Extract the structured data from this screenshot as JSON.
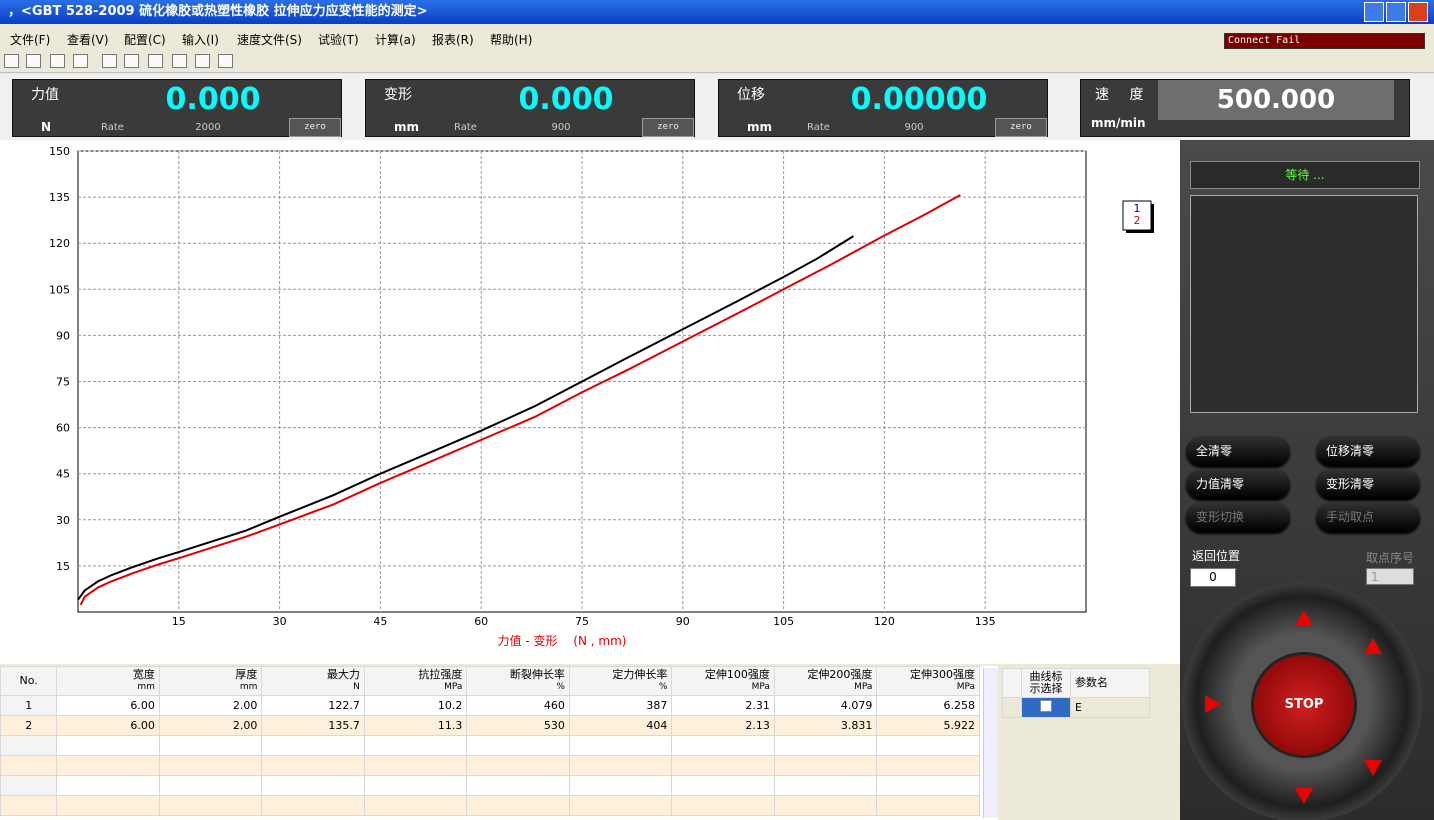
{
  "window": {
    "title": "，<GBT 528-2009 硫化橡胶或热塑性橡胶 拉伸应力应变性能的测定>"
  },
  "menu": [
    "文件(F)",
    "查看(V)",
    "配置(C)",
    "输入(I)",
    "速度文件(S)",
    "试验(T)",
    "计算(a)",
    "报表(R)",
    "帮助(H)"
  ],
  "status": "Connect Fail",
  "gauges": [
    {
      "label": "力值",
      "value": "0.000",
      "unit": "N",
      "rate_label": "Rate",
      "rate": "2000",
      "button": "zero"
    },
    {
      "label": "变形",
      "value": "0.000",
      "unit": "mm",
      "rate_label": "Rate",
      "rate": "900",
      "button": "zero"
    },
    {
      "label": "位移",
      "value": "0.00000",
      "unit": "mm",
      "rate_label": "Rate",
      "rate": "900",
      "button": "zero"
    }
  ],
  "speed": {
    "label": "速 度",
    "value": "500.000",
    "unit": "mm/min"
  },
  "chart_data": {
    "type": "line",
    "xlabel": "力值 - 变形　 (N , mm)",
    "xlim": [
      0,
      150
    ],
    "ylim": [
      0,
      150
    ],
    "xticks": [
      15,
      30,
      45,
      60,
      75,
      90,
      105,
      120,
      135
    ],
    "yticks": [
      15,
      30,
      45,
      60,
      75,
      90,
      105,
      120,
      135,
      150
    ],
    "grid": true,
    "series": [
      {
        "name": "1",
        "color": "#000000",
        "x": [
          0,
          1,
          3,
          5,
          8,
          12,
          15,
          20,
          25,
          30,
          38,
          45,
          52,
          60,
          68,
          75,
          82,
          90,
          98,
          105,
          110,
          115.4
        ],
        "values": [
          4,
          7,
          10,
          12,
          14.5,
          17.5,
          19.5,
          23,
          26.5,
          31,
          38,
          45,
          51.5,
          59,
          67,
          75,
          83,
          92,
          101,
          109,
          115,
          122.3
        ]
      },
      {
        "name": "2",
        "color": "#e00000",
        "x": [
          0.4,
          1,
          3,
          5,
          8,
          12,
          15,
          20,
          25,
          30,
          38,
          45,
          52,
          60,
          68,
          75,
          82,
          90,
          98,
          105,
          112,
          120,
          126,
          131.3
        ],
        "values": [
          2.3,
          5,
          8,
          10,
          12.5,
          15.5,
          17.5,
          21,
          24.5,
          28.5,
          35,
          42,
          48.5,
          56,
          63.5,
          71.5,
          79,
          88,
          97,
          105,
          113,
          122.5,
          129.3,
          135.7
        ]
      }
    ]
  },
  "table": {
    "columns": [
      {
        "name": "No."
      },
      {
        "name": "宽度",
        "unit": "mm"
      },
      {
        "name": "厚度",
        "unit": "mm"
      },
      {
        "name": "最大力",
        "unit": "N"
      },
      {
        "name": "抗拉强度",
        "unit": "MPa"
      },
      {
        "name": "断裂伸长率",
        "unit": "%"
      },
      {
        "name": "定力伸长率",
        "unit": "%"
      },
      {
        "name": "定伸100强度",
        "unit": "MPa"
      },
      {
        "name": "定伸200强度",
        "unit": "MPa"
      },
      {
        "name": "定伸300强度",
        "unit": "MPa"
      }
    ],
    "rows": [
      [
        "1",
        "6.00",
        "2.00",
        "122.7",
        "10.2",
        "460",
        "387",
        "2.31",
        "4.079",
        "6.258"
      ],
      [
        "2",
        "6.00",
        "2.00",
        "135.7",
        "11.3",
        "530",
        "404",
        "2.13",
        "3.831",
        "5.922"
      ]
    ]
  },
  "curve_table": {
    "columns": [
      "曲线标示选择",
      "参数名"
    ],
    "rows": [
      [
        "E"
      ]
    ]
  },
  "panel": {
    "status": "等待 ...",
    "buttons": [
      "全清零",
      "位移清零",
      "力值清零",
      "变形清零",
      "变形切换",
      "手动取点"
    ],
    "return_label": "返回位置",
    "return_value": "0",
    "point_label": "取点序号",
    "point_value": "1",
    "stop": "STOP"
  }
}
